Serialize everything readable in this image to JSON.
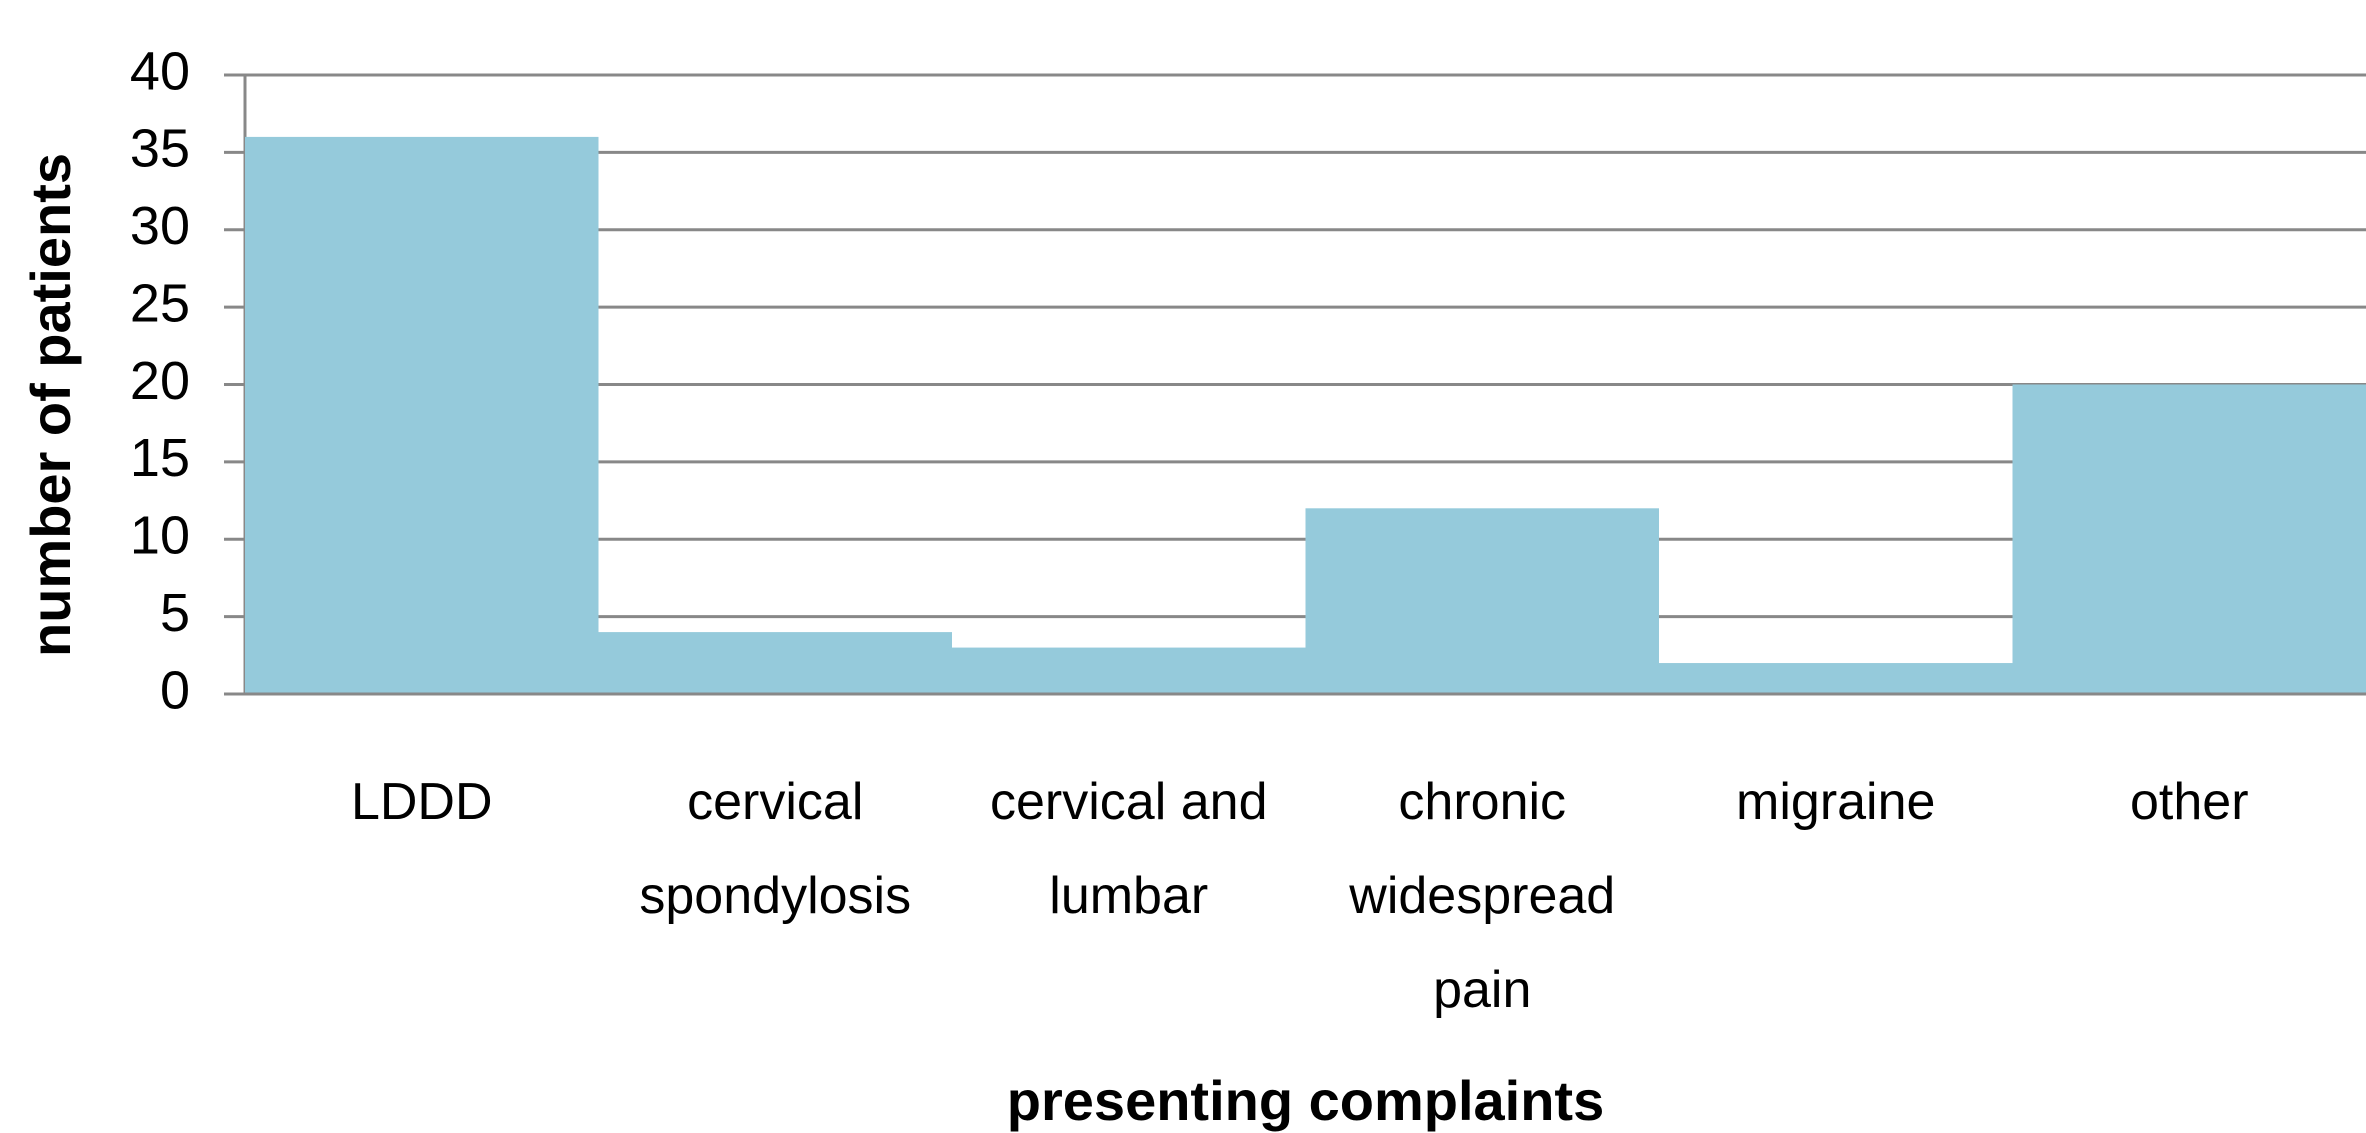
{
  "chart_data": {
    "type": "bar",
    "x_label": "presenting complaints",
    "y_label": "number of patients",
    "categories": [
      "LDDD",
      "cervical spondylosis",
      "cervical and lumbar",
      "chronic widespread pain",
      "migraine",
      "other"
    ],
    "values": [
      36,
      4,
      3,
      12,
      2,
      20
    ],
    "color": "#95cadb",
    "ylim": [
      0,
      40
    ],
    "yticks": [
      0,
      5,
      10,
      15,
      20,
      25,
      30,
      35,
      40
    ],
    "grid": true
  }
}
